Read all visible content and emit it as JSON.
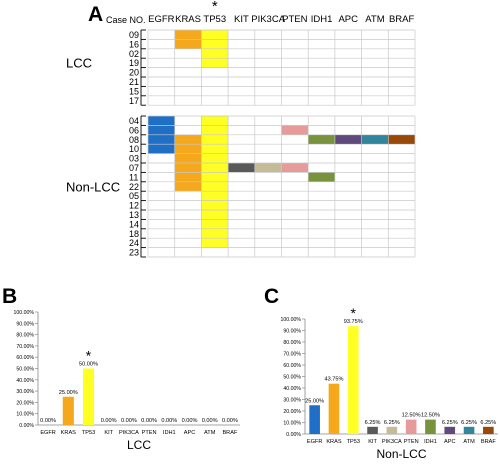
{
  "panels": {
    "a": "A",
    "b": "B",
    "c": "C"
  },
  "heatmap": {
    "case_header": "Case NO.",
    "genes": [
      "EGFR",
      "KRAS",
      "TP53",
      "KIT",
      "PIK3CA",
      "PTEN",
      "IDH1",
      "APC",
      "ATM",
      "BRAF"
    ],
    "significance_marker": "*",
    "significant_gene": "TP53",
    "groups": [
      {
        "label": "LCC",
        "cases": [
          "09",
          "16",
          "02",
          "19",
          "20",
          "21",
          "15",
          "17"
        ]
      },
      {
        "label": "Non-LCC",
        "cases": [
          "04",
          "06",
          "08",
          "10",
          "03",
          "07",
          "11",
          "22",
          "05",
          "12",
          "13",
          "14",
          "18",
          "24",
          "23"
        ]
      }
    ],
    "mutations": [
      {
        "case": "09",
        "gene": "KRAS"
      },
      {
        "case": "16",
        "gene": "KRAS"
      },
      {
        "case": "09",
        "gene": "TP53"
      },
      {
        "case": "16",
        "gene": "TP53"
      },
      {
        "case": "02",
        "gene": "TP53"
      },
      {
        "case": "19",
        "gene": "TP53"
      },
      {
        "case": "04",
        "gene": "EGFR"
      },
      {
        "case": "06",
        "gene": "EGFR"
      },
      {
        "case": "08",
        "gene": "EGFR"
      },
      {
        "case": "10",
        "gene": "EGFR"
      },
      {
        "case": "08",
        "gene": "KRAS"
      },
      {
        "case": "10",
        "gene": "KRAS"
      },
      {
        "case": "03",
        "gene": "KRAS"
      },
      {
        "case": "07",
        "gene": "KRAS"
      },
      {
        "case": "11",
        "gene": "KRAS"
      },
      {
        "case": "22",
        "gene": "KRAS"
      },
      {
        "case": "04",
        "gene": "TP53"
      },
      {
        "case": "06",
        "gene": "TP53"
      },
      {
        "case": "08",
        "gene": "TP53"
      },
      {
        "case": "10",
        "gene": "TP53"
      },
      {
        "case": "03",
        "gene": "TP53"
      },
      {
        "case": "07",
        "gene": "TP53"
      },
      {
        "case": "11",
        "gene": "TP53"
      },
      {
        "case": "22",
        "gene": "TP53"
      },
      {
        "case": "05",
        "gene": "TP53"
      },
      {
        "case": "12",
        "gene": "TP53"
      },
      {
        "case": "13",
        "gene": "TP53"
      },
      {
        "case": "14",
        "gene": "TP53"
      },
      {
        "case": "18",
        "gene": "TP53"
      },
      {
        "case": "24",
        "gene": "TP53"
      },
      {
        "case": "07",
        "gene": "KIT"
      },
      {
        "case": "07",
        "gene": "PIK3CA"
      },
      {
        "case": "06",
        "gene": "PTEN"
      },
      {
        "case": "07",
        "gene": "PTEN"
      },
      {
        "case": "08",
        "gene": "IDH1"
      },
      {
        "case": "11",
        "gene": "IDH1"
      },
      {
        "case": "08",
        "gene": "APC"
      },
      {
        "case": "08",
        "gene": "ATM"
      },
      {
        "case": "08",
        "gene": "BRAF"
      }
    ]
  },
  "colors": {
    "EGFR": "#1f6fc6",
    "KRAS": "#f5a81c",
    "TP53": "#ffff24",
    "KIT": "#595959",
    "PIK3CA": "#c4bc98",
    "PTEN": "#e79a9a",
    "IDH1": "#77933c",
    "APC": "#604a7b",
    "ATM": "#31859c",
    "BRAF": "#984807",
    "grid": "#c8c8c8",
    "axis": "#888888"
  },
  "chart_data": [
    {
      "type": "bar",
      "panel": "B",
      "xlabel": "LCC",
      "categories": [
        "EGFR",
        "KRAS",
        "TP53",
        "KIT",
        "PIK3CA",
        "PTEN",
        "IDH1",
        "APC",
        "ATM",
        "BRAF"
      ],
      "values": [
        0,
        25,
        50,
        0,
        0,
        0,
        0,
        0,
        0,
        0
      ],
      "data_labels": [
        "0.00%",
        "25.00%",
        "50.00%",
        "0.00%",
        "0.00%",
        "0.00%",
        "0.00%",
        "0.00%",
        "0.00%",
        "0.00%"
      ],
      "significance_marker": "*",
      "significant_category": "TP53",
      "ylim": [
        0,
        100
      ],
      "yticks": [
        "0.00%",
        "10.00%",
        "20.00%",
        "30.00%",
        "40.00%",
        "50.00%",
        "60.00%",
        "70.00%",
        "80.00%",
        "90.00%",
        "100.00%"
      ],
      "grid": false,
      "legend": "none"
    },
    {
      "type": "bar",
      "panel": "C",
      "xlabel": "Non-LCC",
      "categories": [
        "EGFR",
        "KRAS",
        "TP53",
        "KIT",
        "PIK3CA",
        "PTEN",
        "IDH1",
        "APC",
        "ATM",
        "BRAF"
      ],
      "values": [
        25,
        43.75,
        93.75,
        6.25,
        6.25,
        12.5,
        12.5,
        6.25,
        6.25,
        6.25
      ],
      "data_labels": [
        "25.00%",
        "43.75%",
        "93.75%",
        "6.25%",
        "6.25%",
        "12.50%",
        "12.50%",
        "6.25%",
        "6.25%",
        "6.25%"
      ],
      "significance_marker": "*",
      "significant_category": "TP53",
      "ylim": [
        0,
        100
      ],
      "yticks": [
        "0.00%",
        "10.00%",
        "20.00%",
        "30.00%",
        "40.00%",
        "50.00%",
        "60.00%",
        "70.00%",
        "80.00%",
        "90.00%",
        "100.00%"
      ],
      "grid": false,
      "legend": "none"
    }
  ]
}
